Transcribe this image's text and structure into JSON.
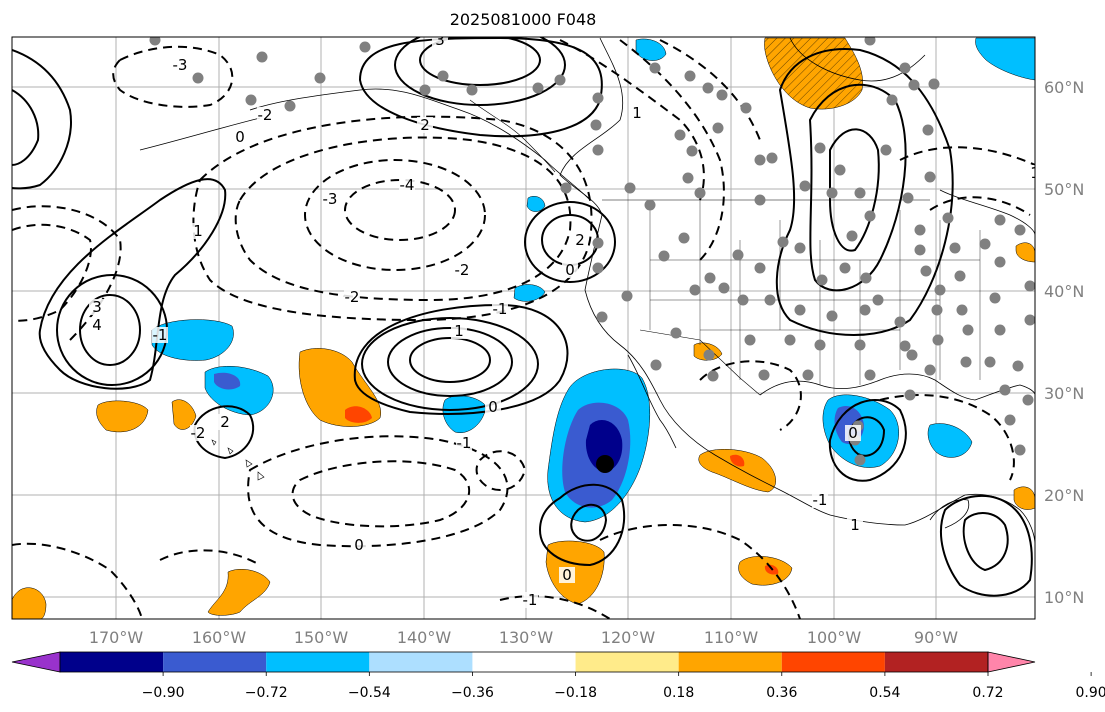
{
  "title": "2025081000 F048",
  "longitude_labels": [
    "170°W",
    "160°W",
    "150°W",
    "140°W",
    "130°W",
    "120°W",
    "110°W",
    "100°W",
    "90°W"
  ],
  "latitude_labels": [
    "60°N",
    "50°N",
    "40°N",
    "30°N",
    "20°N",
    "10°N"
  ],
  "colorbar": {
    "tick_labels": [
      "−0.90",
      "−0.72",
      "−0.54",
      "−0.36",
      "−0.18",
      "0.18",
      "0.36",
      "0.54",
      "0.72",
      "0.90"
    ],
    "colors": [
      "#9932CC",
      "#00008B",
      "#3A5BD0",
      "#00BFFF",
      "#ADDFFF",
      "#FFFFFF",
      "#FFEB8A",
      "#FFA500",
      "#FF4500",
      "#B22222",
      "#FF85AA"
    ]
  },
  "contour_labels": [
    "3",
    "-3",
    "-2",
    "2",
    "1",
    "0",
    "-1",
    "-4",
    "3",
    "4",
    "-3",
    "1",
    "2",
    "-2",
    "0",
    "-2",
    "-1",
    "0",
    "1",
    "2",
    "-1",
    "-2",
    "0",
    "0",
    "-1",
    "1",
    "-1",
    "0",
    "1"
  ],
  "contour_line_color": "#000000",
  "station_marker_color": "#808080",
  "marked_point_color": "#000000"
}
